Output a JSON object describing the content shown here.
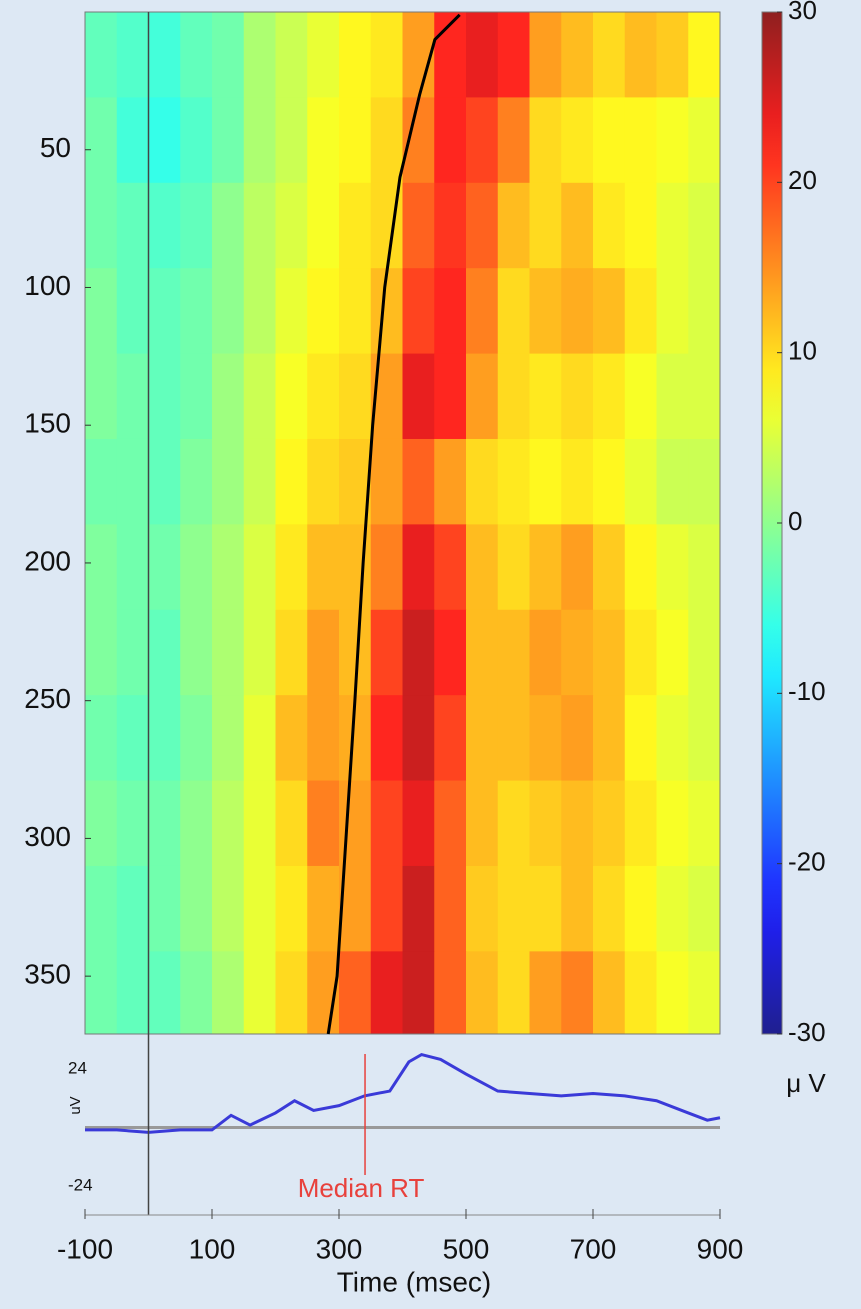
{
  "chart_data": {
    "type": "erpimage",
    "xlabel": "Time (msec)",
    "xlim": [
      -100,
      900
    ],
    "xticks": [
      -100,
      100,
      300,
      500,
      700,
      900
    ],
    "trial_lim": [
      0,
      371
    ],
    "trial_ticks": [
      50,
      100,
      150,
      200,
      250,
      300,
      350
    ],
    "time_bins": [
      -100,
      -50,
      0,
      50,
      100,
      150,
      200,
      250,
      300,
      350,
      400,
      450,
      500,
      550,
      600,
      650,
      700,
      750,
      800,
      850,
      900
    ],
    "trial_bins": [
      0,
      31,
      62,
      93,
      124,
      155,
      186,
      217,
      248,
      279,
      310,
      341,
      371
    ],
    "values": [
      [
        -3,
        -4,
        -5,
        -3,
        -2,
        2,
        4,
        6,
        8,
        9,
        14,
        22,
        24,
        22,
        14,
        12,
        10,
        12,
        11,
        8
      ],
      [
        -2,
        -5,
        -6,
        -4,
        -2,
        2,
        4,
        7,
        8,
        10,
        16,
        22,
        20,
        16,
        10,
        9,
        8,
        8,
        7,
        6
      ],
      [
        -2,
        -3,
        -4,
        -3,
        0,
        3,
        5,
        7,
        9,
        10,
        18,
        21,
        18,
        12,
        10,
        12,
        9,
        8,
        6,
        5
      ],
      [
        -1,
        -3,
        -3,
        -2,
        0,
        3,
        6,
        8,
        9,
        12,
        20,
        22,
        16,
        10,
        12,
        13,
        12,
        9,
        6,
        5
      ],
      [
        -1,
        -2,
        -3,
        -2,
        1,
        4,
        7,
        9,
        10,
        14,
        24,
        22,
        14,
        10,
        9,
        10,
        9,
        7,
        5,
        5
      ],
      [
        -2,
        -2,
        -3,
        -1,
        1,
        4,
        8,
        10,
        11,
        14,
        18,
        14,
        10,
        9,
        8,
        9,
        8,
        6,
        4,
        4
      ],
      [
        -1,
        -2,
        -2,
        0,
        2,
        5,
        9,
        12,
        12,
        16,
        24,
        20,
        12,
        10,
        12,
        14,
        11,
        8,
        6,
        5
      ],
      [
        -1,
        -2,
        -3,
        0,
        2,
        5,
        10,
        14,
        12,
        20,
        26,
        22,
        12,
        12,
        14,
        13,
        12,
        9,
        7,
        5
      ],
      [
        -2,
        -3,
        -3,
        -1,
        2,
        6,
        12,
        14,
        13,
        22,
        26,
        20,
        12,
        12,
        13,
        14,
        12,
        8,
        6,
        5
      ],
      [
        -1,
        -2,
        -2,
        0,
        3,
        6,
        10,
        16,
        14,
        20,
        24,
        18,
        12,
        10,
        11,
        12,
        11,
        9,
        7,
        6
      ],
      [
        -2,
        -3,
        -2,
        0,
        3,
        6,
        9,
        13,
        14,
        20,
        26,
        18,
        11,
        10,
        10,
        12,
        10,
        8,
        6,
        5
      ],
      [
        -2,
        -3,
        -3,
        -1,
        2,
        6,
        10,
        14,
        18,
        24,
        26,
        18,
        12,
        10,
        14,
        16,
        12,
        9,
        7,
        6
      ]
    ],
    "clim": [
      -30,
      30
    ],
    "cticks": [
      -30,
      -20,
      -10,
      0,
      10,
      20,
      30
    ],
    "clabel": "μ V",
    "sort_curve": {
      "trials": [
        1,
        10,
        30,
        60,
        100,
        150,
        200,
        250,
        300,
        350,
        371
      ],
      "values": [
        490,
        451,
        427,
        396,
        372,
        353,
        338,
        325,
        311,
        297,
        283
      ],
      "color": "#000000"
    },
    "event_time": 0,
    "erp": {
      "ylabel": "uV",
      "ylim": [
        -36,
        36
      ],
      "yticks": [
        -24,
        24
      ],
      "color": "#3a3ad8",
      "x": [
        -100,
        -50,
        0,
        50,
        100,
        130,
        160,
        200,
        230,
        260,
        300,
        340,
        380,
        410,
        430,
        460,
        500,
        550,
        600,
        650,
        700,
        750,
        800,
        850,
        880,
        900
      ],
      "values": [
        -1,
        -1,
        -2,
        -1,
        -1,
        5,
        1,
        6,
        11,
        7,
        9,
        13,
        15,
        27,
        30,
        28,
        22,
        15,
        14,
        13,
        14,
        13,
        11,
        6,
        3,
        4
      ]
    },
    "median_rt": {
      "value": 341,
      "label": "Median RT",
      "color": "#e8413c"
    }
  }
}
